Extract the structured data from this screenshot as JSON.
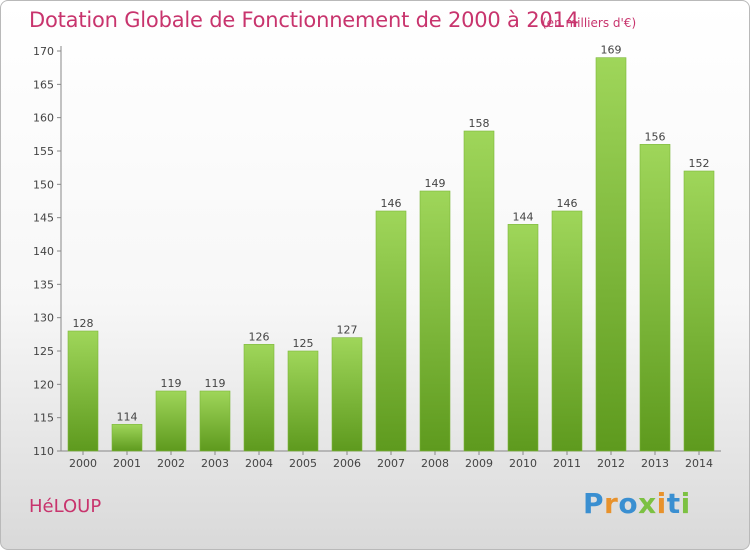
{
  "title": "Dotation Globale de Fonctionnement de 2000 à 2014",
  "subtitle": "(en milliers d'€)",
  "commune": "HéLOUP",
  "logo": {
    "letters": [
      {
        "char": "P",
        "color": "#3a8fd1"
      },
      {
        "char": "r",
        "color": "#e8922c"
      },
      {
        "char": "o",
        "color": "#3a8fd1"
      },
      {
        "char": "x",
        "color": "#7cc142"
      },
      {
        "char": "i",
        "color": "#e8922c"
      },
      {
        "char": "t",
        "color": "#3a8fd1"
      },
      {
        "char": "i",
        "color": "#7cc142"
      }
    ]
  },
  "colors": {
    "bar_light": "#9fd65a",
    "bar_dark": "#5e9a1e",
    "accent": "#c8346d"
  },
  "chart_data": {
    "type": "bar",
    "categories": [
      "2000",
      "2001",
      "2002",
      "2003",
      "2004",
      "2005",
      "2006",
      "2007",
      "2008",
      "2009",
      "2010",
      "2011",
      "2012",
      "2013",
      "2014"
    ],
    "values": [
      128,
      114,
      119,
      119,
      126,
      125,
      127,
      146,
      149,
      158,
      144,
      146,
      169,
      156,
      152
    ],
    "ylim": [
      110,
      170
    ],
    "yticks": [
      110,
      115,
      120,
      125,
      130,
      135,
      140,
      145,
      150,
      155,
      160,
      165,
      170
    ],
    "grid": false,
    "data_labels": true
  }
}
